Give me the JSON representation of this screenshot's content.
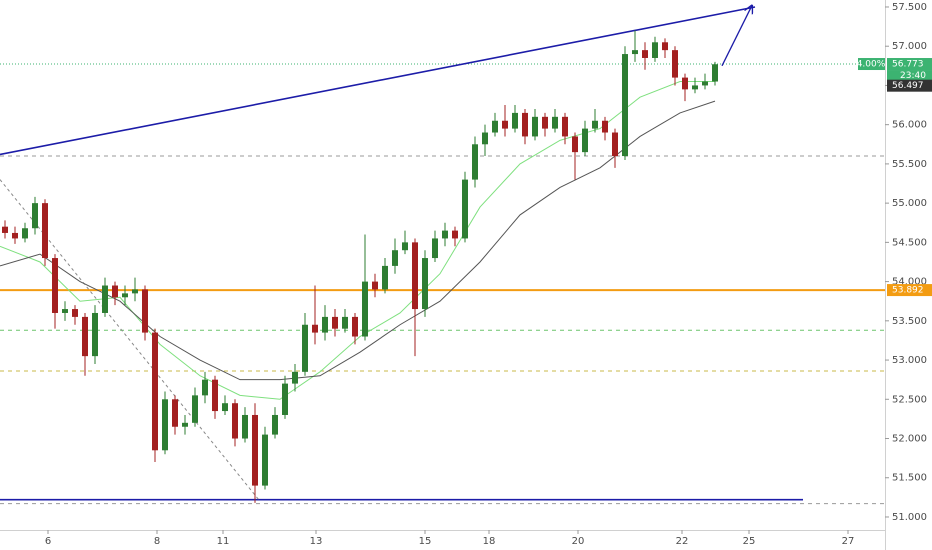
{
  "chart_data": {
    "type": "candlestick",
    "xlim": [
      0,
      88.5
    ],
    "ylim": [
      50.834,
      57.589
    ],
    "xticks": [
      {
        "value": 4.8,
        "label": "6"
      },
      {
        "value": 15.7,
        "label": "8"
      },
      {
        "value": 22.3,
        "label": "11"
      },
      {
        "value": 31.6,
        "label": "13"
      },
      {
        "value": 42.5,
        "label": "15"
      },
      {
        "value": 48.9,
        "label": "18"
      },
      {
        "value": 57.8,
        "label": "20"
      },
      {
        "value": 68.2,
        "label": "22"
      },
      {
        "value": 74.9,
        "label": "25"
      },
      {
        "value": 84.8,
        "label": "27"
      }
    ],
    "yticks": [
      {
        "value": 51.0,
        "label": "51.000"
      },
      {
        "value": 51.5,
        "label": "51.500"
      },
      {
        "value": 52.0,
        "label": "52.000"
      },
      {
        "value": 52.5,
        "label": "52.500"
      },
      {
        "value": 53.0,
        "label": "53.000"
      },
      {
        "value": 53.5,
        "label": "53.500"
      },
      {
        "value": 54.0,
        "label": "54.000"
      },
      {
        "value": 54.5,
        "label": "54.500"
      },
      {
        "value": 55.0,
        "label": "55.000"
      },
      {
        "value": 55.5,
        "label": "55.500"
      },
      {
        "value": 56.0,
        "label": "56.000"
      },
      {
        "value": 56.5,
        "label": "56.500"
      },
      {
        "value": 57.0,
        "label": "57.000"
      },
      {
        "value": 57.5,
        "label": "57.500"
      }
    ],
    "up_color": "#2e7d32",
    "down_color": "#a32020",
    "open": [
      54.7,
      54.62,
      54.55,
      54.68,
      55.0,
      54.3,
      53.6,
      53.65,
      53.55,
      53.05,
      53.6,
      53.95,
      53.8,
      53.85,
      53.9,
      53.35,
      51.85,
      52.5,
      52.15,
      52.2,
      52.55,
      52.75,
      52.35,
      52.45,
      52.0,
      52.3,
      51.4,
      52.05,
      52.3,
      52.7,
      52.85,
      53.45,
      53.35,
      53.55,
      53.4,
      53.55,
      53.3,
      54.0,
      53.9,
      54.2,
      54.4,
      54.5,
      53.65,
      54.3,
      54.55,
      54.65,
      54.55,
      55.3,
      55.75,
      55.9,
      56.05,
      55.95,
      56.15,
      55.85,
      56.1,
      55.95,
      56.1,
      55.85,
      55.65,
      55.95,
      56.05,
      55.9,
      55.6,
      56.9,
      56.95,
      56.85,
      57.05,
      56.95,
      56.6,
      56.45,
      56.5,
      56.55
    ],
    "high": [
      54.78,
      54.7,
      54.75,
      55.08,
      55.05,
      54.35,
      53.75,
      53.7,
      53.6,
      53.7,
      54.05,
      54.0,
      53.95,
      54.05,
      53.95,
      53.4,
      52.6,
      52.55,
      52.3,
      52.65,
      52.85,
      52.8,
      52.55,
      52.5,
      52.4,
      52.45,
      52.15,
      52.4,
      52.8,
      52.95,
      53.6,
      53.95,
      53.7,
      53.65,
      53.65,
      53.6,
      54.6,
      54.1,
      54.3,
      54.55,
      54.65,
      54.55,
      54.4,
      54.65,
      54.75,
      54.7,
      55.4,
      55.85,
      56.0,
      56.15,
      56.25,
      56.25,
      56.2,
      56.2,
      56.15,
      56.2,
      56.15,
      55.9,
      56.05,
      56.2,
      56.1,
      55.95,
      57.0,
      57.2,
      57.05,
      57.12,
      57.1,
      57.0,
      56.65,
      56.6,
      56.65,
      56.8
    ],
    "low": [
      54.55,
      54.48,
      54.5,
      54.6,
      54.2,
      53.4,
      53.5,
      53.45,
      52.8,
      52.95,
      53.55,
      53.7,
      53.7,
      53.75,
      53.25,
      51.7,
      51.8,
      52.05,
      52.05,
      52.15,
      52.45,
      52.25,
      52.3,
      51.9,
      51.95,
      51.18,
      51.35,
      52.0,
      52.25,
      52.6,
      52.8,
      53.2,
      53.25,
      53.3,
      53.35,
      53.2,
      53.25,
      53.8,
      53.85,
      54.1,
      54.35,
      53.05,
      53.55,
      54.25,
      54.45,
      54.45,
      54.5,
      55.2,
      55.6,
      55.85,
      55.85,
      55.9,
      55.75,
      55.8,
      55.85,
      55.9,
      55.75,
      55.3,
      55.6,
      55.9,
      55.8,
      55.45,
      55.55,
      56.8,
      56.7,
      56.8,
      56.85,
      56.5,
      56.3,
      56.4,
      56.45,
      56.5
    ],
    "close": [
      54.62,
      54.55,
      54.68,
      55.0,
      54.3,
      53.6,
      53.65,
      53.55,
      53.05,
      53.6,
      53.95,
      53.8,
      53.85,
      53.9,
      53.35,
      51.85,
      52.5,
      52.15,
      52.2,
      52.55,
      52.75,
      52.35,
      52.45,
      52.0,
      52.3,
      51.4,
      52.05,
      52.3,
      52.7,
      52.85,
      53.45,
      53.35,
      53.55,
      53.4,
      53.55,
      53.3,
      54.0,
      53.9,
      54.2,
      54.4,
      54.5,
      53.65,
      54.3,
      54.55,
      54.65,
      54.55,
      55.3,
      55.75,
      55.9,
      56.05,
      55.95,
      56.15,
      55.85,
      56.1,
      55.95,
      56.1,
      55.85,
      55.65,
      55.95,
      56.05,
      55.9,
      55.6,
      56.9,
      56.95,
      56.85,
      57.05,
      56.95,
      56.6,
      56.45,
      56.5,
      56.55,
      56.77
    ],
    "moving_averages": [
      {
        "color": "#7fe07f",
        "x": [
          0,
          4,
          8,
          12,
          16,
          20,
          24,
          28,
          32,
          36,
          40,
          44,
          48,
          52,
          56,
          60,
          64,
          68,
          71.5
        ],
        "values": [
          54.45,
          54.25,
          53.75,
          53.8,
          53.2,
          52.8,
          52.55,
          52.5,
          52.85,
          53.3,
          53.6,
          54.1,
          54.95,
          55.5,
          55.8,
          55.95,
          56.35,
          56.55,
          56.55
        ]
      },
      {
        "color": "#555555",
        "x": [
          0,
          4,
          8,
          12,
          16,
          20,
          24,
          28,
          32,
          36,
          40,
          44,
          48,
          52,
          56,
          60,
          64,
          68,
          71.5
        ],
        "values": [
          54.2,
          54.35,
          54.0,
          53.75,
          53.3,
          53.0,
          52.75,
          52.75,
          52.8,
          53.1,
          53.45,
          53.75,
          54.25,
          54.85,
          55.2,
          55.45,
          55.85,
          56.15,
          56.3
        ]
      }
    ],
    "levels": [
      {
        "value": 55.6,
        "color": "#9a9a9a",
        "dash": "4 4"
      },
      {
        "value": 53.38,
        "color": "#6cc46c",
        "dash": "4 4"
      },
      {
        "value": 52.86,
        "color": "#c9b84a",
        "dash": "4 4"
      },
      {
        "value": 51.17,
        "color": "#9a9a9a",
        "dash": "4 4"
      },
      {
        "value": 56.773,
        "color": "#3cb371",
        "dash": "1 2"
      },
      {
        "value": 53.892,
        "color": "#f39c12",
        "dash": "none"
      }
    ],
    "trendlines": [
      {
        "x": [
          0,
          75.5
        ],
        "y": [
          55.62,
          57.5
        ],
        "color": "#1c1ca8"
      },
      {
        "x": [
          0,
          80.3
        ],
        "y": [
          51.22,
          51.22
        ],
        "color": "#1c1ca8"
      },
      {
        "x": [
          0,
          26
        ],
        "y": [
          55.3,
          51.2
        ],
        "color": "#888888",
        "dash": "3 3"
      }
    ],
    "arrow": {
      "x": [
        72.2,
        75.2
      ],
      "y": [
        56.75,
        57.52
      ],
      "color": "#1c1ca8"
    },
    "last_price": 56.773,
    "last_change": "4.00%",
    "countdown": "23:40",
    "ma_price": 56.497,
    "level_tag": 53.892
  }
}
